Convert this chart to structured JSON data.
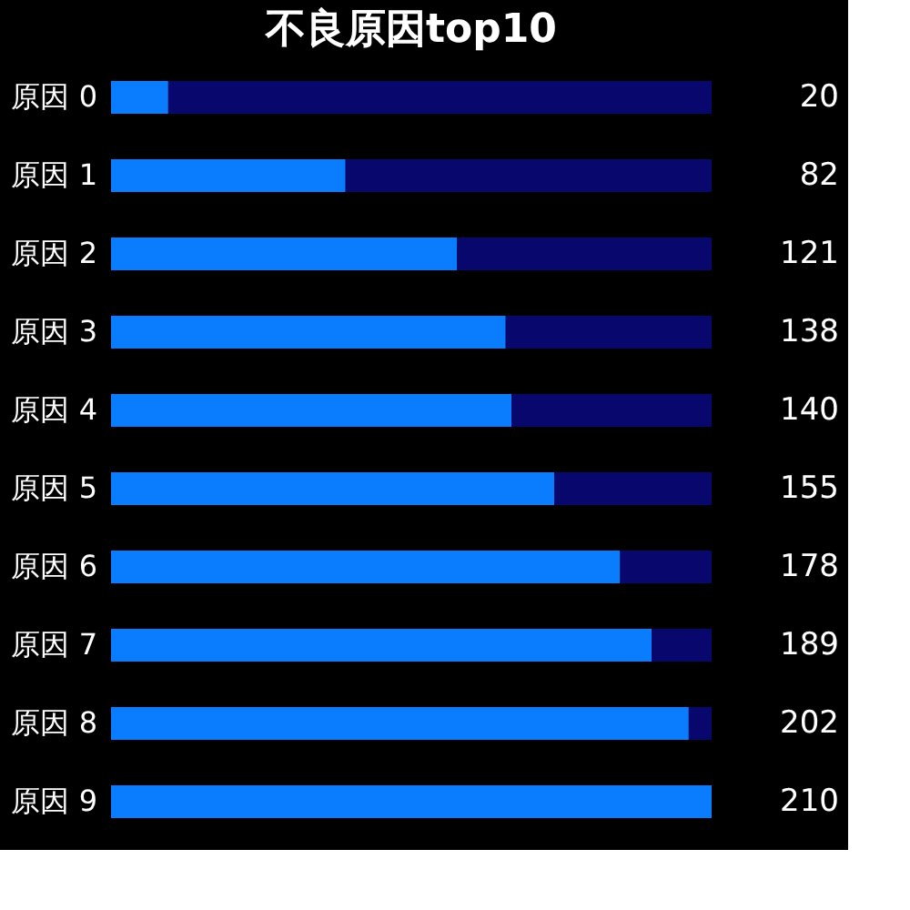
{
  "chart_data": {
    "type": "bar",
    "title": "不良原因top10",
    "orientation": "horizontal",
    "stacked": true,
    "tick_labels": "y",
    "categories": [
      "原因 0",
      "原因 1",
      "原因 2",
      "原因 3",
      "原因 4",
      "原因 5",
      "原因 6",
      "原因 7",
      "原因 8",
      "原因 9"
    ],
    "series": [
      {
        "color": "#0a7dff",
        "values": [
          20,
          82,
          121,
          138,
          140,
          155,
          178,
          189,
          202,
          210
        ],
        "value_labels": [
          "20",
          "82",
          "121",
          "138",
          "140",
          "155",
          "178",
          "189",
          "202",
          "210"
        ]
      },
      {
        "color": "#07076e",
        "values": [
          190,
          128,
          89,
          72,
          70,
          55,
          32,
          21,
          8,
          0
        ]
      }
    ]
  }
}
